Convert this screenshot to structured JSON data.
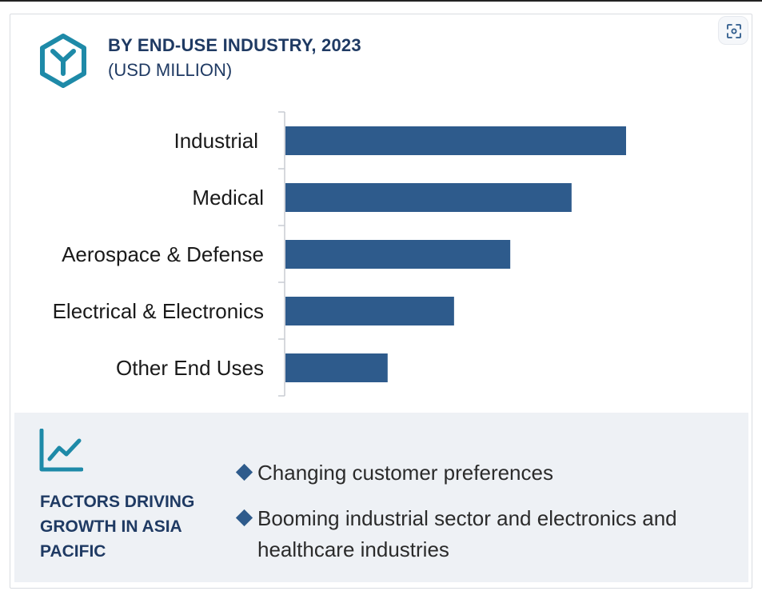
{
  "header": {
    "title": "BY END-USE INDUSTRY, 2023",
    "subtitle": "(USD MILLION)",
    "logo_icon": "hexagon-y-icon",
    "scan_icon": "scan-icon"
  },
  "colors": {
    "bar": "#2e5b8c",
    "title": "#1f3a63",
    "accent": "#1e8aa8",
    "panel": "#eef1f5"
  },
  "chart_data": {
    "type": "bar",
    "orientation": "horizontal",
    "title": "BY END-USE INDUSTRY, 2023",
    "subtitle": "(USD MILLION)",
    "categories": [
      "Industrial",
      "Medical",
      "Aerospace & Defense",
      "Electrical & Electronics",
      "Other End Uses"
    ],
    "values": [
      100,
      84,
      66,
      49.5,
      30
    ],
    "grid": false,
    "axis_ticks": false
  },
  "factors": {
    "icon": "trend-chart-icon",
    "title": "FACTORS DRIVING GROWTH IN ASIA PACIFIC",
    "bullets": [
      "Changing customer preferences",
      "Booming industrial sector and electronics and healthcare industries"
    ]
  }
}
